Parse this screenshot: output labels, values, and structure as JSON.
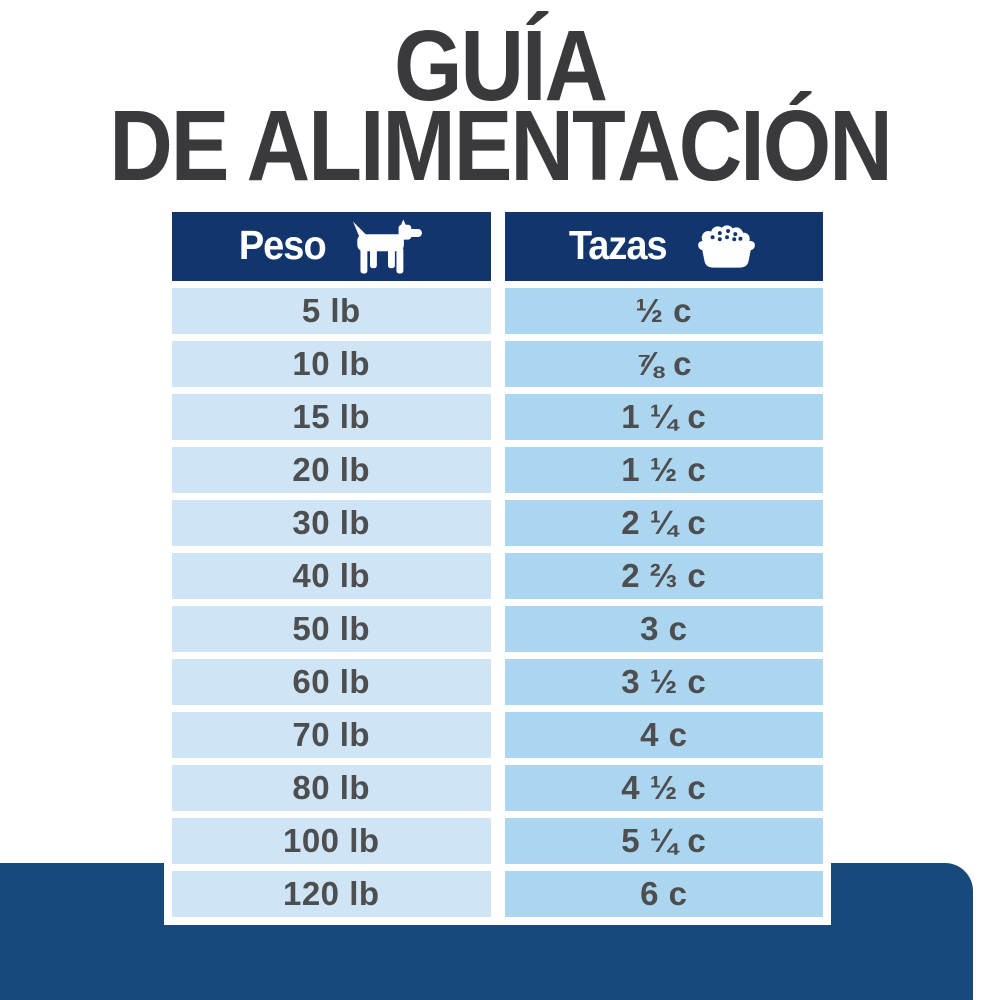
{
  "title": {
    "line1": "GUÍA",
    "line2": "DE ALIMENTACIÓN"
  },
  "table": {
    "columns": [
      {
        "label": "Peso",
        "icon": "dog-icon"
      },
      {
        "label": "Tazas",
        "icon": "bowl-icon"
      }
    ],
    "rows": [
      {
        "weight": "5 lb",
        "cups": "½ c"
      },
      {
        "weight": "10 lb",
        "cups": "⅞ c"
      },
      {
        "weight": "15 lb",
        "cups": "1 ¼ c"
      },
      {
        "weight": "20 lb",
        "cups": "1 ½ c"
      },
      {
        "weight": "30 lb",
        "cups": "2 ¼ c"
      },
      {
        "weight": "40 lb",
        "cups": "2 ⅔ c"
      },
      {
        "weight": "50 lb",
        "cups": "3 c"
      },
      {
        "weight": "60 lb",
        "cups": "3 ½ c"
      },
      {
        "weight": "70 lb",
        "cups": "4 c"
      },
      {
        "weight": "80 lb",
        "cups": "4 ½ c"
      },
      {
        "weight": "100 lb",
        "cups": "5 ¼ c"
      },
      {
        "weight": "120 lb",
        "cups": "6 c"
      }
    ]
  },
  "colors": {
    "header_navy": "#12356E",
    "footer_navy": "#17497C",
    "cell_light_blue": "#CFE4F5",
    "cell_medium_blue": "#ACD5EF",
    "data_text": "#4D4E50",
    "title_text": "#3A3A3C"
  },
  "chart_data": {
    "type": "table",
    "title": "GUÍA DE ALIMENTACIÓN",
    "columns": [
      "Peso",
      "Tazas"
    ],
    "rows": [
      [
        "5 lb",
        "½ c"
      ],
      [
        "10 lb",
        "⅞ c"
      ],
      [
        "15 lb",
        "1 ¼ c"
      ],
      [
        "20 lb",
        "1 ½ c"
      ],
      [
        "30 lb",
        "2 ¼ c"
      ],
      [
        "40 lb",
        "2 ⅔ c"
      ],
      [
        "50 lb",
        "3 c"
      ],
      [
        "60 lb",
        "3 ½ c"
      ],
      [
        "70 lb",
        "4 c"
      ],
      [
        "80 lb",
        "4 ½ c"
      ],
      [
        "100 lb",
        "5 ¼ c"
      ],
      [
        "120 lb",
        "6 c"
      ]
    ]
  }
}
